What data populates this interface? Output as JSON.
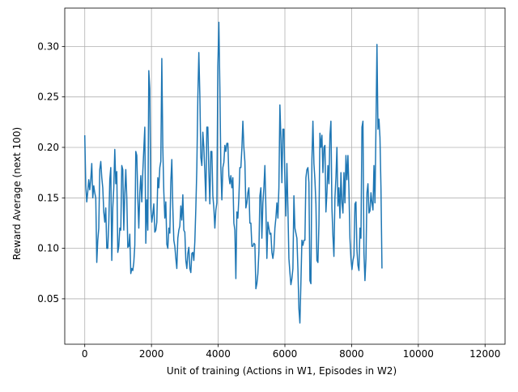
{
  "chart_data": {
    "type": "line",
    "xlabel": "Unit of training (Actions in W1, Episodes in W2)",
    "ylabel": "Reward Average (next 100)",
    "xlim": [
      -600,
      12600
    ],
    "ylim": [
      0.005,
      0.338
    ],
    "x_ticks": [
      0,
      2000,
      4000,
      6000,
      8000,
      10000,
      12000
    ],
    "x_tick_labels": [
      "0",
      "2000",
      "4000",
      "6000",
      "8000",
      "10000",
      "12000"
    ],
    "y_ticks": [
      0.05,
      0.1,
      0.15,
      0.2,
      0.25,
      0.3
    ],
    "y_tick_labels": [
      "0.05",
      "0.10",
      "0.15",
      "0.20",
      "0.25",
      "0.30"
    ],
    "grid": true,
    "line_color": "#1f77b4",
    "series": [
      {
        "x_start": 0,
        "x_step": 30,
        "values": [
          0.212,
          0.162,
          0.146,
          0.156,
          0.168,
          0.158,
          0.168,
          0.184,
          0.15,
          0.162,
          0.155,
          0.15,
          0.086,
          0.108,
          0.12,
          0.178,
          0.186,
          0.17,
          0.16,
          0.136,
          0.126,
          0.14,
          0.1,
          0.1,
          0.125,
          0.168,
          0.18,
          0.088,
          0.14,
          0.16,
          0.198,
          0.164,
          0.176,
          0.096,
          0.102,
          0.12,
          0.118,
          0.182,
          0.178,
          0.118,
          0.154,
          0.178,
          0.15,
          0.101,
          0.102,
          0.114,
          0.075,
          0.08,
          0.078,
          0.086,
          0.103,
          0.196,
          0.192,
          0.15,
          0.12,
          0.155,
          0.172,
          0.146,
          0.176,
          0.198,
          0.22,
          0.105,
          0.148,
          0.118,
          0.276,
          0.258,
          0.14,
          0.126,
          0.134,
          0.144,
          0.116,
          0.118,
          0.126,
          0.17,
          0.16,
          0.18,
          0.186,
          0.288,
          0.2,
          0.156,
          0.13,
          0.146,
          0.104,
          0.1,
          0.12,
          0.115,
          0.166,
          0.188,
          0.14,
          0.108,
          0.102,
          0.09,
          0.08,
          0.11,
          0.118,
          0.122,
          0.142,
          0.128,
          0.153,
          0.118,
          0.116,
          0.088,
          0.08,
          0.095,
          0.101,
          0.08,
          0.076,
          0.095,
          0.096,
          0.088,
          0.107,
          0.14,
          0.18,
          0.25,
          0.294,
          0.252,
          0.19,
          0.182,
          0.215,
          0.2,
          0.175,
          0.147,
          0.22,
          0.22,
          0.176,
          0.144,
          0.196,
          0.196,
          0.152,
          0.14,
          0.12,
          0.138,
          0.145,
          0.28,
          0.324,
          0.26,
          0.18,
          0.148,
          0.18,
          0.185,
          0.202,
          0.196,
          0.204,
          0.204,
          0.172,
          0.164,
          0.172,
          0.16,
          0.17,
          0.125,
          0.118,
          0.07,
          0.136,
          0.13,
          0.15,
          0.18,
          0.18,
          0.199,
          0.226,
          0.2,
          0.186,
          0.14,
          0.145,
          0.155,
          0.16,
          0.125,
          0.125,
          0.102,
          0.102,
          0.105,
          0.104,
          0.06,
          0.065,
          0.075,
          0.096,
          0.152,
          0.16,
          0.11,
          0.145,
          0.16,
          0.182,
          0.14,
          0.09,
          0.126,
          0.12,
          0.114,
          0.115,
          0.096,
          0.09,
          0.098,
          0.12,
          0.13,
          0.145,
          0.13,
          0.16,
          0.242,
          0.21,
          0.165,
          0.218,
          0.218,
          0.166,
          0.132,
          0.184,
          0.14,
          0.09,
          0.076,
          0.064,
          0.07,
          0.08,
          0.152,
          0.12,
          0.115,
          0.11,
          0.08,
          0.04,
          0.026,
          0.066,
          0.108,
          0.103,
          0.108,
          0.108,
          0.17,
          0.178,
          0.18,
          0.165,
          0.068,
          0.065,
          0.188,
          0.226,
          0.184,
          0.168,
          0.144,
          0.088,
          0.086,
          0.124,
          0.214,
          0.2,
          0.212,
          0.175,
          0.2,
          0.202,
          0.136,
          0.155,
          0.182,
          0.164,
          0.212,
          0.226,
          0.14,
          0.112,
          0.092,
          0.15,
          0.17,
          0.2,
          0.142,
          0.16,
          0.13,
          0.175,
          0.145,
          0.135,
          0.175,
          0.145,
          0.192,
          0.168,
          0.192,
          0.158,
          0.11,
          0.09,
          0.079,
          0.088,
          0.093,
          0.144,
          0.146,
          0.098,
          0.083,
          0.078,
          0.12,
          0.11,
          0.22,
          0.226,
          0.095,
          0.068,
          0.09,
          0.155,
          0.164,
          0.135,
          0.137,
          0.155,
          0.145,
          0.138,
          0.182,
          0.145,
          0.22,
          0.302,
          0.218,
          0.228,
          0.21,
          0.16,
          0.08
        ]
      }
    ]
  }
}
